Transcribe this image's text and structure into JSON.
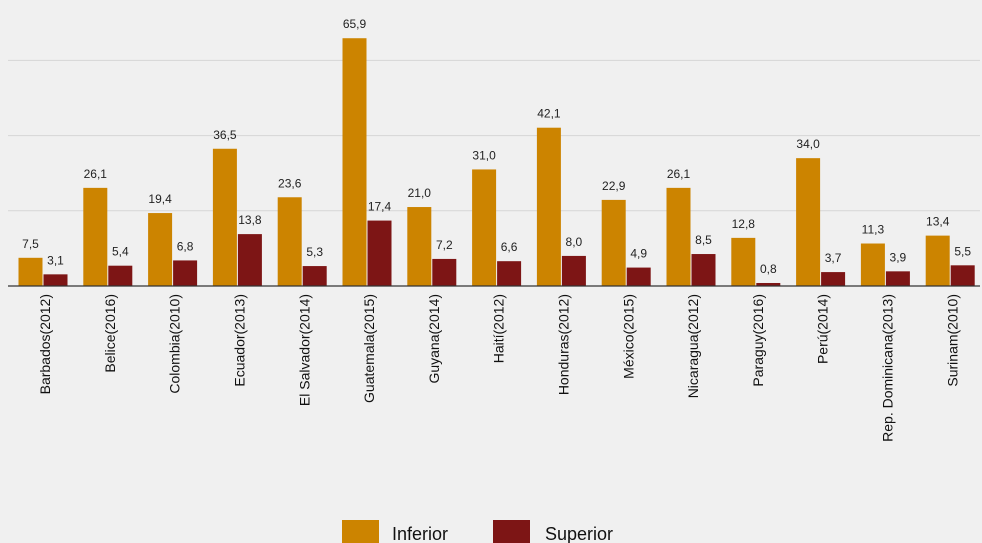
{
  "chart_data": {
    "type": "bar",
    "categories": [
      "Barbados(2012)",
      "Belice(2016)",
      "Colombia(2010)",
      "Ecuador(2013)",
      "El Salvador(2014)",
      "Guatemala(2015)",
      "Guyana(2014)",
      "Haití(2012)",
      "Honduras(2012)",
      "México(2015)",
      "Nicaragua(2012)",
      "Paraguy(2016)",
      "Perú(2014)",
      "Rep. Dominicana(2013)",
      "Surinam(2010)"
    ],
    "series": [
      {
        "name": "Inferior",
        "color": "#cc8400",
        "values": [
          7.5,
          26.1,
          19.4,
          36.5,
          23.6,
          65.9,
          21.0,
          31.0,
          42.1,
          22.9,
          26.1,
          12.8,
          34.0,
          11.3,
          13.4
        ],
        "labels": [
          "7,5",
          "26,1",
          "19,4",
          "36,5",
          "23,6",
          "65,9",
          "21,0",
          "31,0",
          "42,1",
          "22,9",
          "26,1",
          "12,8",
          "34,0",
          "11,3",
          "13,4"
        ]
      },
      {
        "name": "Superior",
        "color": "#7d1515",
        "values": [
          3.1,
          5.4,
          6.8,
          13.8,
          5.3,
          17.4,
          7.2,
          6.6,
          8.0,
          4.9,
          8.5,
          0.8,
          3.7,
          3.9,
          5.5
        ],
        "labels": [
          "3,1",
          "5,4",
          "6,8",
          "13,8",
          "5,3",
          "17,4",
          "7,2",
          "6,6",
          "8,0",
          "4,9",
          "8,5",
          "0,8",
          "3,7",
          "3,9",
          "5,5"
        ]
      }
    ],
    "title": "",
    "xlabel": "",
    "ylabel": "",
    "ylim": [
      0,
      70
    ],
    "grid": true,
    "legend": "bottom-center"
  }
}
